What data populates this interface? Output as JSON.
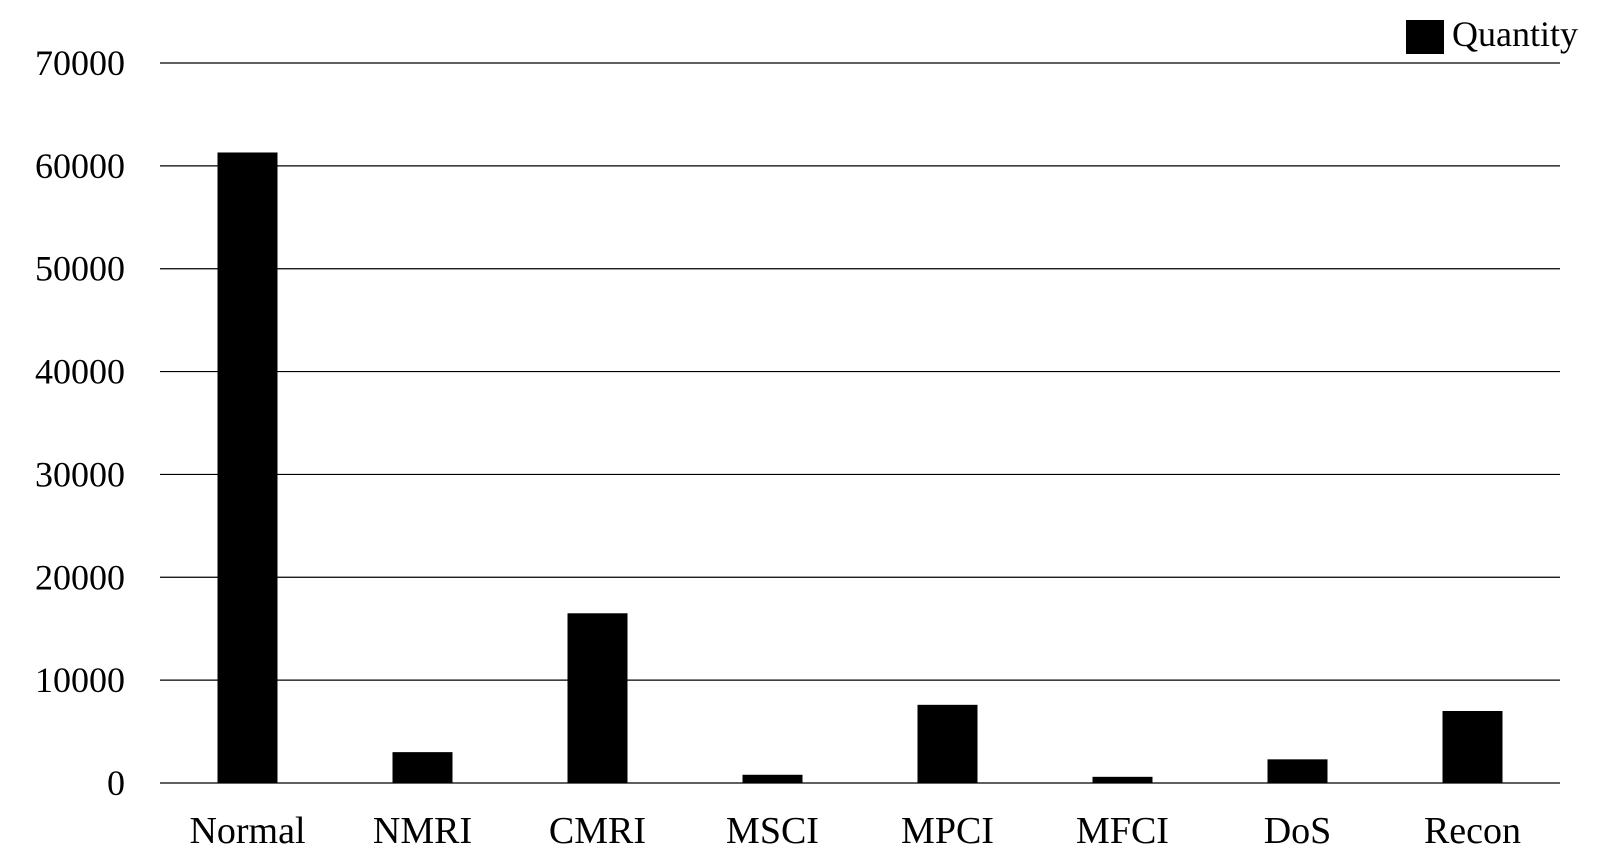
{
  "chart_data": {
    "type": "bar",
    "categories": [
      "Normal",
      "NMRI",
      "CMRI",
      "MSCI",
      "MPCI",
      "MFCI",
      "DoS",
      "Recon"
    ],
    "series": [
      {
        "name": "Quantity",
        "values": [
          61300,
          3000,
          16500,
          800,
          7600,
          600,
          2300,
          7000
        ]
      }
    ],
    "yticks": [
      "70000",
      "60000",
      "50000",
      "40000",
      "30000",
      "20000",
      "10000",
      "0"
    ],
    "ylim": [
      0,
      70000
    ],
    "grid": true,
    "legend_position": "top-right",
    "colors": {
      "bar": "#000000",
      "grid": "#000000"
    }
  }
}
